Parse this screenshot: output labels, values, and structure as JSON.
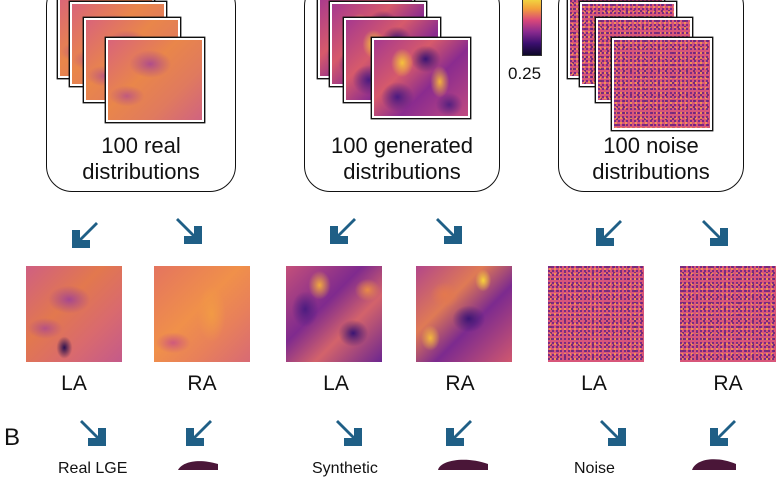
{
  "groups": [
    {
      "id": "real",
      "caption_line1": "100 real",
      "caption_line2": "distributions"
    },
    {
      "id": "generated",
      "caption_line1": "100 generated",
      "caption_line2": "distributions"
    },
    {
      "id": "noise",
      "caption_line1": "100 noise",
      "caption_line2": "distributions"
    }
  ],
  "colorbar": {
    "min_label": "0.25"
  },
  "maps": [
    {
      "group": "real",
      "label": "LA"
    },
    {
      "group": "real",
      "label": "RA"
    },
    {
      "group": "generated",
      "label": "LA"
    },
    {
      "group": "generated",
      "label": "RA"
    },
    {
      "group": "noise",
      "label": "LA"
    },
    {
      "group": "noise",
      "label": "RA"
    }
  ],
  "section_letter": "B",
  "bottom_labels": [
    "Real LGE",
    "Synthetic",
    "Noise"
  ],
  "colors": {
    "arrow": "#1f5f86",
    "atrium": "#4a1638"
  }
}
